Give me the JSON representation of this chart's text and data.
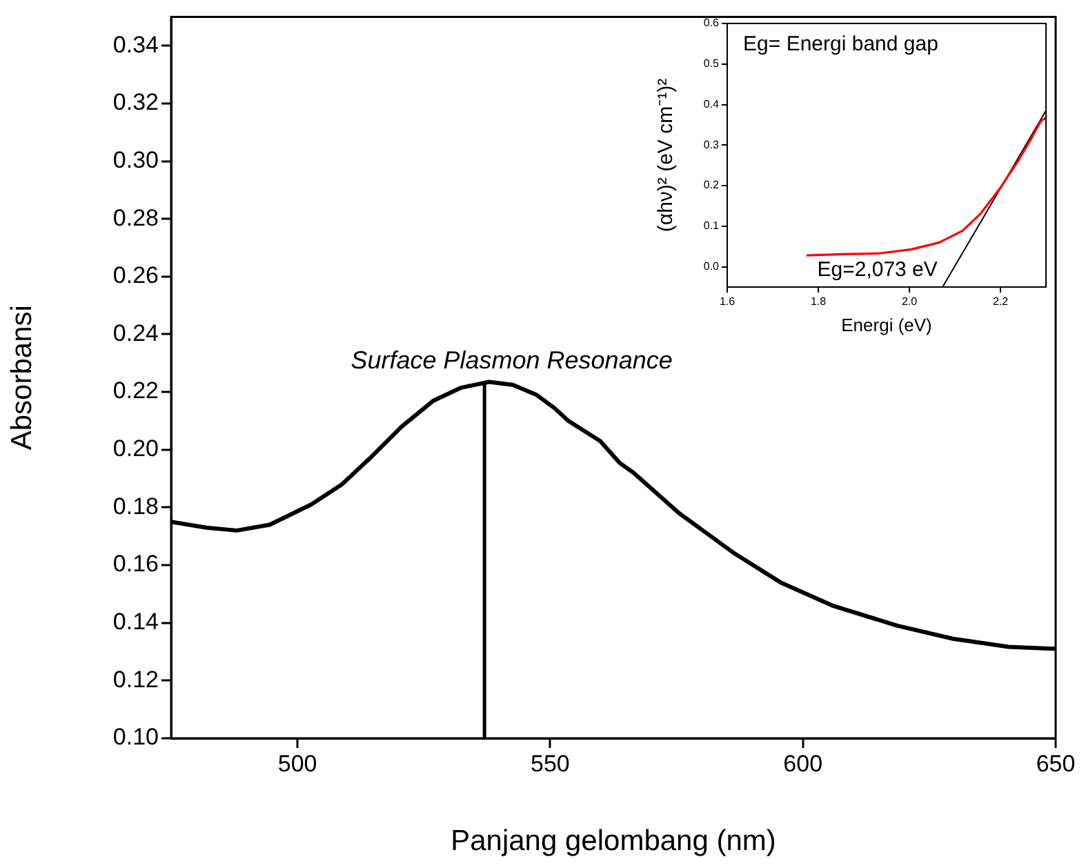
{
  "chart_data": [
    {
      "type": "line",
      "xlabel": "Panjang gelombang (nm)",
      "ylabel": "Absorbansi",
      "marker": "none",
      "xlim": [
        475,
        650
      ],
      "xticks": [
        500,
        550,
        600,
        650
      ],
      "ylim": [
        0.1,
        0.35
      ],
      "yticks": [
        {
          "value": 0.1,
          "label": "0.10"
        },
        {
          "value": 0.12,
          "label": "0.12"
        },
        {
          "value": 0.14,
          "label": "0.14"
        },
        {
          "value": 0.16,
          "label": "0.16"
        },
        {
          "value": 0.18,
          "label": "0.18"
        },
        {
          "value": 0.2,
          "label": "0.20"
        },
        {
          "value": 0.22,
          "label": "0.22"
        },
        {
          "value": 0.24,
          "label": "0.24"
        },
        {
          "value": 0.26,
          "label": "0.26"
        },
        {
          "value": 0.28,
          "label": "0.28"
        },
        {
          "value": 0.3,
          "label": "0.30"
        },
        {
          "value": 0.32,
          "label": "0.32"
        },
        {
          "value": 0.34,
          "label": "0.34"
        }
      ],
      "series": [
        {
          "color": "#000000",
          "x": [
            475,
            482,
            488,
            494.5,
            502.7,
            508.8,
            514.3,
            520.6,
            526.9,
            532.4,
            537.9,
            542.6,
            547.3,
            550.8,
            553.6,
            559.9,
            563.7,
            566.5,
            575.5,
            586.5,
            595.6,
            605.8,
            618.7,
            629.7,
            640.7,
            650
          ],
          "values": [
            0.175,
            0.173,
            0.172,
            0.174,
            0.181,
            0.188,
            0.197,
            0.208,
            0.217,
            0.2215,
            0.2235,
            0.2225,
            0.219,
            0.2145,
            0.21,
            0.203,
            0.1955,
            0.192,
            0.178,
            0.164,
            0.154,
            0.146,
            0.139,
            0.1345,
            0.1317,
            0.131
          ]
        }
      ],
      "ref_lines": [
        {
          "axis": "x",
          "value": 537,
          "color": "#000000"
        }
      ],
      "annotations": [
        "Surface Plasmon Resonance"
      ]
    },
    {
      "type": "line",
      "xlabel": "Energi (eV)",
      "ylabel": "(αhν)² (eV cm⁻¹)²",
      "marker": "none",
      "xlim": [
        1.6,
        2.3
      ],
      "xticks": [
        1.6,
        1.8,
        {
          "value": 2,
          "label": "2.0"
        },
        2.2
      ],
      "ylim": [
        -0.05,
        0.6
      ],
      "yticks": [
        {
          "value": 0,
          "label": "0.0"
        },
        0.1,
        0.2,
        0.3,
        0.4,
        0.5,
        0.6
      ],
      "series": [
        {
          "color": "#ff0000",
          "x": [
            1.774,
            1.853,
            1.934,
            2.005,
            2.066,
            2.117,
            2.157,
            2.198,
            2.238,
            2.268,
            2.289,
            2.3
          ],
          "values": [
            0.028,
            0.031,
            0.033,
            0.043,
            0.06,
            0.089,
            0.132,
            0.192,
            0.26,
            0.317,
            0.36,
            0.367
          ]
        },
        {
          "type": "line",
          "color": "#000000",
          "x": [
            2.074,
            2.3
          ],
          "values": [
            -0.048,
            0.385
          ]
        }
      ],
      "annotations": [
        "Eg= Energi band gap",
        {
          "text": "Eg=2,073 eV",
          "x": 2.074,
          "y": -0.048
        }
      ]
    }
  ]
}
